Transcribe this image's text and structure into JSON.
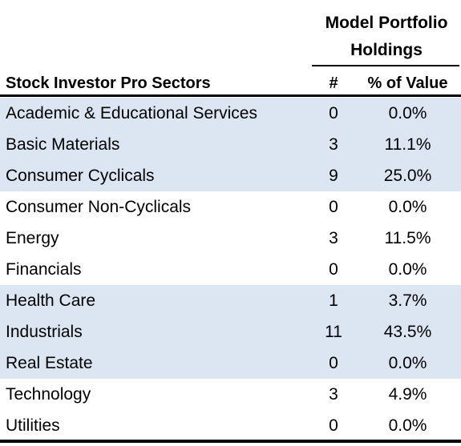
{
  "table": {
    "group_header_line1": "Model Portfolio",
    "group_header_line2": "Holdings",
    "headers": {
      "sector": "Stock Investor Pro Sectors",
      "count": "#",
      "pct": "% of Value"
    },
    "rows": [
      {
        "sector": "Academic & Educational Services",
        "count": "0",
        "pct": "0.0%"
      },
      {
        "sector": "Basic Materials",
        "count": "3",
        "pct": "11.1%"
      },
      {
        "sector": "Consumer Cyclicals",
        "count": "9",
        "pct": "25.0%"
      },
      {
        "sector": "Consumer Non-Cyclicals",
        "count": "0",
        "pct": "0.0%"
      },
      {
        "sector": "Energy",
        "count": "3",
        "pct": "11.5%"
      },
      {
        "sector": "Financials",
        "count": "0",
        "pct": "0.0%"
      },
      {
        "sector": "Health Care",
        "count": "1",
        "pct": "3.7%"
      },
      {
        "sector": "Industrials",
        "count": "11",
        "pct": "43.5%"
      },
      {
        "sector": "Real Estate",
        "count": "0",
        "pct": "0.0%"
      },
      {
        "sector": "Technology",
        "count": "3",
        "pct": "4.9%"
      },
      {
        "sector": "Utilities",
        "count": "0",
        "pct": "0.0%"
      }
    ],
    "colors": {
      "shade": "#dce6f2",
      "rule": "#000000"
    }
  }
}
